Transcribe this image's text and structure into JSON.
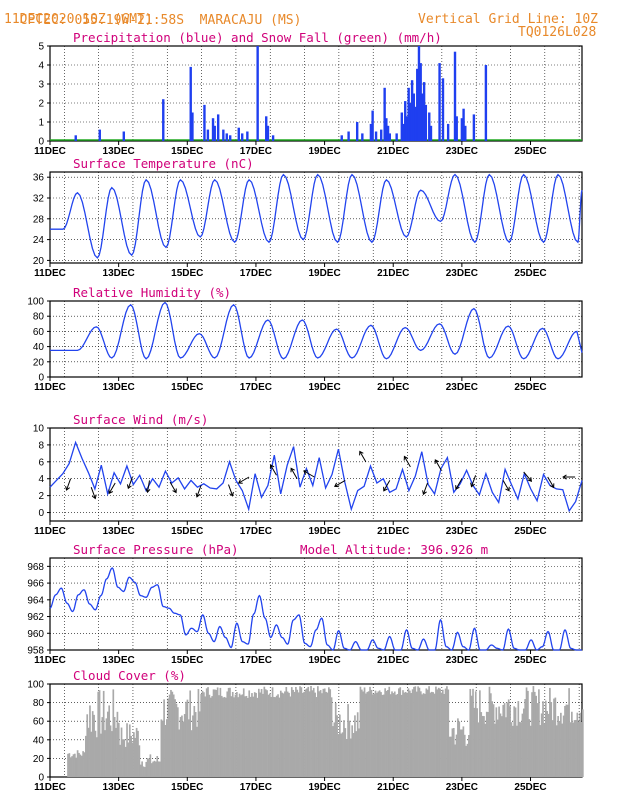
{
  "header": {
    "agency": "CPTEC:",
    "location": "055:19W-21:58S  MARACAJU (MS)",
    "date": "11DEC2020 10Z (GMT)",
    "grid_note": "Vertical Grid Line: 10Z",
    "run_id": "TQ0126L028"
  },
  "colors": {
    "header": "#e8892a",
    "title": "#d0007a",
    "precip": "#1f3ff0",
    "snow": "#22aa22",
    "line": "#2244ee",
    "cloud": "#a9a9a9"
  },
  "chart_data": [
    {
      "type": "bar",
      "title": "Precipitation (blue) and Snow Fall (green) (mm/h)",
      "x_ticks": [
        "11DEC",
        "13DEC",
        "15DEC",
        "17DEC",
        "19DEC",
        "21DEC",
        "23DEC",
        "25DEC"
      ],
      "ylim": [
        0,
        5
      ],
      "y_ticks": [
        0,
        1,
        2,
        3,
        4,
        5
      ],
      "x_range_days": [
        0,
        15.5
      ],
      "precip_bars": [
        [
          0.75,
          0.3
        ],
        [
          1.45,
          0.6
        ],
        [
          2.15,
          0.5
        ],
        [
          3.3,
          2.2
        ],
        [
          4.1,
          3.9
        ],
        [
          4.15,
          1.5
        ],
        [
          4.5,
          1.9
        ],
        [
          4.6,
          0.6
        ],
        [
          4.75,
          1.2
        ],
        [
          4.8,
          0.8
        ],
        [
          4.9,
          1.4
        ],
        [
          5.05,
          0.6
        ],
        [
          5.15,
          0.4
        ],
        [
          5.25,
          0.3
        ],
        [
          5.5,
          0.7
        ],
        [
          5.6,
          0.4
        ],
        [
          5.75,
          0.5
        ],
        [
          6.05,
          5.0
        ],
        [
          6.3,
          1.3
        ],
        [
          6.35,
          0.8
        ],
        [
          6.5,
          0.3
        ],
        [
          8.5,
          0.3
        ],
        [
          8.7,
          0.5
        ],
        [
          8.95,
          1.0
        ],
        [
          9.1,
          0.4
        ],
        [
          9.35,
          0.9
        ],
        [
          9.4,
          1.6
        ],
        [
          9.5,
          0.5
        ],
        [
          9.65,
          0.6
        ],
        [
          9.75,
          2.8
        ],
        [
          9.8,
          1.2
        ],
        [
          9.85,
          0.8
        ],
        [
          9.9,
          0.4
        ],
        [
          10.1,
          0.4
        ],
        [
          10.25,
          1.5
        ],
        [
          10.3,
          0.9
        ],
        [
          10.35,
          2.1
        ],
        [
          10.4,
          1.3
        ],
        [
          10.45,
          2.8
        ],
        [
          10.5,
          2.0
        ],
        [
          10.55,
          3.2
        ],
        [
          10.6,
          2.5
        ],
        [
          10.65,
          1.8
        ],
        [
          10.7,
          3.8
        ],
        [
          10.75,
          5.0
        ],
        [
          10.8,
          4.1
        ],
        [
          10.85,
          2.5
        ],
        [
          10.9,
          3.1
        ],
        [
          10.95,
          1.9
        ],
        [
          11.05,
          1.5
        ],
        [
          11.1,
          0.8
        ],
        [
          11.35,
          4.1
        ],
        [
          11.45,
          3.3
        ],
        [
          11.6,
          0.9
        ],
        [
          11.8,
          4.7
        ],
        [
          11.85,
          1.3
        ],
        [
          12.0,
          1.2
        ],
        [
          12.05,
          1.7
        ],
        [
          12.1,
          0.8
        ],
        [
          12.35,
          1.4
        ],
        [
          12.7,
          4.0
        ]
      ]
    },
    {
      "type": "line",
      "title": "Surface Temperature (nC)",
      "ylim": [
        19.5,
        37
      ],
      "y_ticks": [
        20,
        24,
        28,
        32,
        36
      ],
      "peaks": [
        33,
        34,
        35.5,
        35.5,
        35.5,
        35.5,
        36.5,
        36.5,
        36.5,
        35.5,
        33.5,
        36.5,
        36.5,
        36.5,
        36.5
      ],
      "troughs": [
        26,
        20.5,
        21,
        22.5,
        24.5,
        23.5,
        23.5,
        24,
        23.5,
        23.5,
        24.5,
        27.5,
        23.5,
        23.5,
        23.5,
        23.5
      ]
    },
    {
      "type": "line",
      "title": "Relative Humidity (%)",
      "ylim": [
        0,
        100
      ],
      "y_ticks": [
        0,
        20,
        40,
        60,
        80,
        100
      ],
      "peaks": [
        66,
        95,
        98,
        57,
        95,
        75,
        75,
        63,
        68,
        65,
        70,
        90,
        67,
        64,
        60
      ],
      "troughs": [
        35,
        25,
        24,
        25,
        25,
        25,
        24,
        25,
        25,
        24,
        35,
        30,
        25,
        24,
        24,
        24
      ]
    },
    {
      "type": "line",
      "title": "Surface Wind (m/s)",
      "ylim": [
        -1,
        10
      ],
      "y_ticks": [
        0,
        2,
        4,
        6,
        8,
        10
      ],
      "speed": [
        3.0,
        3.8,
        4.6,
        5.8,
        8.3,
        6.4,
        4.7,
        2.8,
        5.6,
        2.2,
        4.7,
        3.4,
        5.5,
        3.3,
        4.4,
        2.6,
        4.0,
        3.0,
        4.9,
        3.5,
        4.1,
        2.8,
        3.8,
        3.0,
        3.4,
        2.9,
        2.8,
        3.5,
        6.0,
        3.8,
        2.6,
        0.4,
        4.6,
        1.8,
        3.2,
        6.8,
        2.2,
        5.6,
        7.8,
        3.0,
        5.2,
        3.2,
        6.5,
        2.9,
        4.5,
        7.5,
        3.6,
        0.4,
        2.6,
        3.1,
        5.5,
        3.5,
        4.0,
        2.4,
        2.8,
        5.1,
        2.6,
        4.3,
        7.2,
        3.3,
        2.2,
        5.2,
        6.5,
        2.4,
        3.4,
        5.0,
        3.2,
        2.1,
        4.6,
        2.4,
        1.2,
        5.1,
        3.3,
        1.6,
        4.6,
        2.8,
        1.4,
        4.5,
        3.2,
        2.8,
        2.7,
        0.2,
        1.3,
        3.8
      ]
    },
    {
      "type": "line",
      "title": "Surface Pressure (hPa)",
      "subtitle": "Model Altitude: 396.926 m",
      "ylim": [
        958,
        969
      ],
      "y_ticks": [
        958,
        960,
        962,
        964,
        966,
        968
      ],
      "pressure": [
        963.0,
        964.6,
        965.4,
        963.6,
        962.6,
        964.6,
        965.2,
        963.5,
        962.8,
        964.5,
        966.5,
        967.8,
        965.5,
        965.0,
        966.7,
        966.1,
        964.5,
        964.3,
        965.5,
        965.8,
        963.2,
        963.0,
        962.4,
        962.2,
        959.8,
        960.6,
        960.2,
        962.2,
        960.0,
        959.0,
        960.8,
        959.5,
        958.3,
        961.2,
        959.0,
        958.7,
        962.3,
        964.5,
        961.8,
        959.5,
        961.0,
        959.5,
        958.7,
        961.6,
        962.2,
        958.8,
        958.4,
        960.4,
        961.8,
        958.6,
        958.0,
        960.3,
        958.2,
        957.8,
        959.0,
        958.0,
        957.5,
        959.2,
        958.2,
        957.9,
        959.6,
        958.0,
        957.3,
        960.4,
        958.2,
        957.8,
        959.3,
        957.9,
        957.2,
        961.6,
        958.4,
        957.8,
        960.1,
        958.4,
        957.9,
        960.6,
        958.0,
        957.5,
        958.6,
        958.2,
        958.0,
        960.5,
        958.2,
        957.5,
        958.0,
        959.2,
        957.8,
        958.4,
        960.2,
        958.0,
        957.5,
        960.4,
        958.2,
        957.8,
        957.6
      ]
    },
    {
      "type": "bar",
      "title": "Cloud Cover (%)",
      "ylim": [
        0,
        100
      ],
      "y_ticks": [
        0,
        20,
        40,
        60,
        80,
        100
      ]
    }
  ]
}
